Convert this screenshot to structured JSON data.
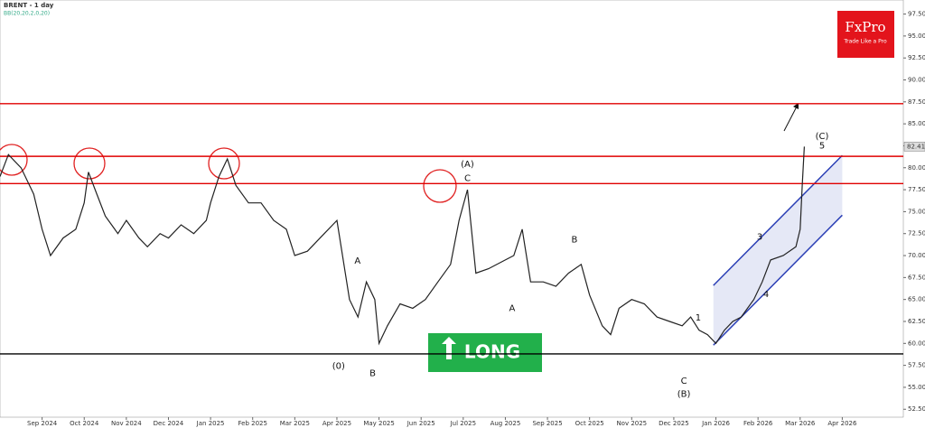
{
  "chart_data": {
    "type": "line",
    "title": "BRENT - 1 day",
    "subtitle": "BB(20,20,2,0,20)",
    "logo": {
      "brand": "FxPro",
      "tagline": "Trade Like a Pro"
    },
    "button": "LONG",
    "series": [
      {
        "name": "BRENT",
        "color": "#222222",
        "x": [
          -1,
          -0.8,
          -0.5,
          -0.2,
          0,
          0.2,
          0.5,
          0.8,
          1,
          1.1,
          1.3,
          1.5,
          1.8,
          2,
          2.3,
          2.5,
          2.8,
          3,
          3.3,
          3.6,
          3.9,
          4,
          4.2,
          4.4,
          4.6,
          4.9,
          5.2,
          5.5,
          5.8,
          6,
          6.3,
          6.6,
          6.9,
          7,
          7.3,
          7.5,
          7.7,
          7.9,
          8,
          8.2,
          8.5,
          8.8,
          9.1,
          9.4,
          9.7,
          9.9,
          10.1,
          10.3,
          10.6,
          11,
          11.2,
          11.4,
          11.6,
          11.9,
          12.2,
          12.5,
          12.8,
          13,
          13.3,
          13.5,
          13.7,
          14,
          14.3,
          14.6,
          14.9,
          15.2,
          15.4,
          15.6,
          15.8,
          16,
          16.2,
          16.4,
          16.6,
          16.9,
          17.1,
          17.3,
          17.6,
          17.9,
          18,
          18.05,
          18.1
        ],
        "values": [
          79,
          81.5,
          80,
          77,
          73,
          70,
          72,
          73,
          76,
          79.5,
          77,
          74.5,
          72.5,
          74,
          72,
          71,
          72.5,
          72,
          73.5,
          72.5,
          74,
          76,
          79,
          81,
          78,
          76,
          76,
          74,
          73,
          70,
          70.5,
          72,
          73.5,
          74,
          65,
          63,
          67,
          65,
          60,
          62,
          64.5,
          64,
          65,
          67,
          69,
          74,
          77.5,
          68,
          68.5,
          69.5,
          70,
          73,
          67,
          67,
          66.5,
          68,
          69,
          65.5,
          62,
          61,
          64,
          65,
          64.5,
          63,
          62.5,
          62,
          63,
          61.5,
          61,
          60,
          61.5,
          62.5,
          63,
          65,
          67,
          69.5,
          70,
          71,
          73,
          78,
          82.4
        ]
      }
    ],
    "last_price": 82.41,
    "levels": [
      {
        "value": 87.3,
        "color": "#e00000"
      },
      {
        "value": 81.3,
        "color": "#e00000"
      },
      {
        "value": 78.2,
        "color": "#e00000"
      },
      {
        "value": 58.8,
        "color": "#000000"
      }
    ],
    "channel": {
      "x": [
        15.94,
        19
      ],
      "upper": [
        66.6,
        81.4
      ],
      "lower": [
        59.8,
        74.6
      ],
      "color": "#2b3fb5"
    },
    "annotations": [
      {
        "text": "(A)",
        "x": 10.1,
        "y": 80.4
      },
      {
        "text": "C",
        "x": 10.1,
        "y": 78.8
      },
      {
        "text": "(0)",
        "x": 7.04,
        "y": 57.4
      },
      {
        "text": "B",
        "x": 7.85,
        "y": 56.6
      },
      {
        "text": "A",
        "x": 7.49,
        "y": 69.4
      },
      {
        "text": "B",
        "x": 12.64,
        "y": 71.8
      },
      {
        "text": "A",
        "x": 11.16,
        "y": 64.0
      },
      {
        "text": "(C)",
        "x": 18.52,
        "y": 83.6
      },
      {
        "text": "5",
        "x": 18.52,
        "y": 82.5
      },
      {
        "text": "3",
        "x": 17.04,
        "y": 72.1
      },
      {
        "text": "4",
        "x": 17.19,
        "y": 65.6
      },
      {
        "text": "1",
        "x": 15.58,
        "y": 62.9
      },
      {
        "text": "C",
        "x": 15.24,
        "y": 55.7
      },
      {
        "text": "(B)",
        "x": 15.24,
        "y": 54.2
      }
    ],
    "xlim": [
      -1,
      20.45
    ],
    "ylim": [
      51.6,
      99.1
    ],
    "xticks": [
      {
        "value": 0,
        "label": "Sep 2024"
      },
      {
        "value": 1,
        "label": "Oct 2024"
      },
      {
        "value": 2,
        "label": "Nov 2024"
      },
      {
        "value": 3,
        "label": "Dec 2024"
      },
      {
        "value": 4,
        "label": "Jan 2025"
      },
      {
        "value": 5,
        "label": "Feb 2025"
      },
      {
        "value": 6,
        "label": "Mar 2025"
      },
      {
        "value": 7,
        "label": "Apr 2025"
      },
      {
        "value": 8,
        "label": "May 2025"
      },
      {
        "value": 9,
        "label": "Jun 2025"
      },
      {
        "value": 10,
        "label": "Jul 2025"
      },
      {
        "value": 11,
        "label": "Aug 2025"
      },
      {
        "value": 12,
        "label": "Sep 2025"
      },
      {
        "value": 13,
        "label": "Oct 2025"
      },
      {
        "value": 14,
        "label": "Nov 2025"
      },
      {
        "value": 15,
        "label": "Dec 2025"
      },
      {
        "value": 16,
        "label": "Jan 2026"
      },
      {
        "value": 17,
        "label": "Feb 2026"
      },
      {
        "value": 18,
        "label": "Mar 2026"
      },
      {
        "value": 19,
        "label": "Apr 2026"
      }
    ],
    "yticks": [
      {
        "value": 97.5,
        "label": "97.50"
      },
      {
        "value": 95,
        "label": "95.00"
      },
      {
        "value": 92.5,
        "label": "92.50"
      },
      {
        "value": 90,
        "label": "90.00"
      },
      {
        "value": 87.5,
        "label": "87.50"
      },
      {
        "value": 85,
        "label": "85.00"
      },
      {
        "value": 82.5,
        "label": "82.50"
      },
      {
        "value": 80,
        "label": "80.00"
      },
      {
        "value": 77.5,
        "label": "77.50"
      },
      {
        "value": 75,
        "label": "75.00"
      },
      {
        "value": 72.5,
        "label": "72.50"
      },
      {
        "value": 70,
        "label": "70.00"
      },
      {
        "value": 67.5,
        "label": "67.50"
      },
      {
        "value": 65,
        "label": "65.00"
      },
      {
        "value": 62.5,
        "label": "62.50"
      },
      {
        "value": 60,
        "label": "60.00"
      },
      {
        "value": 57.5,
        "label": "57.50"
      },
      {
        "value": 55,
        "label": "55.00"
      },
      {
        "value": 52.5,
        "label": "52.50"
      }
    ]
  }
}
